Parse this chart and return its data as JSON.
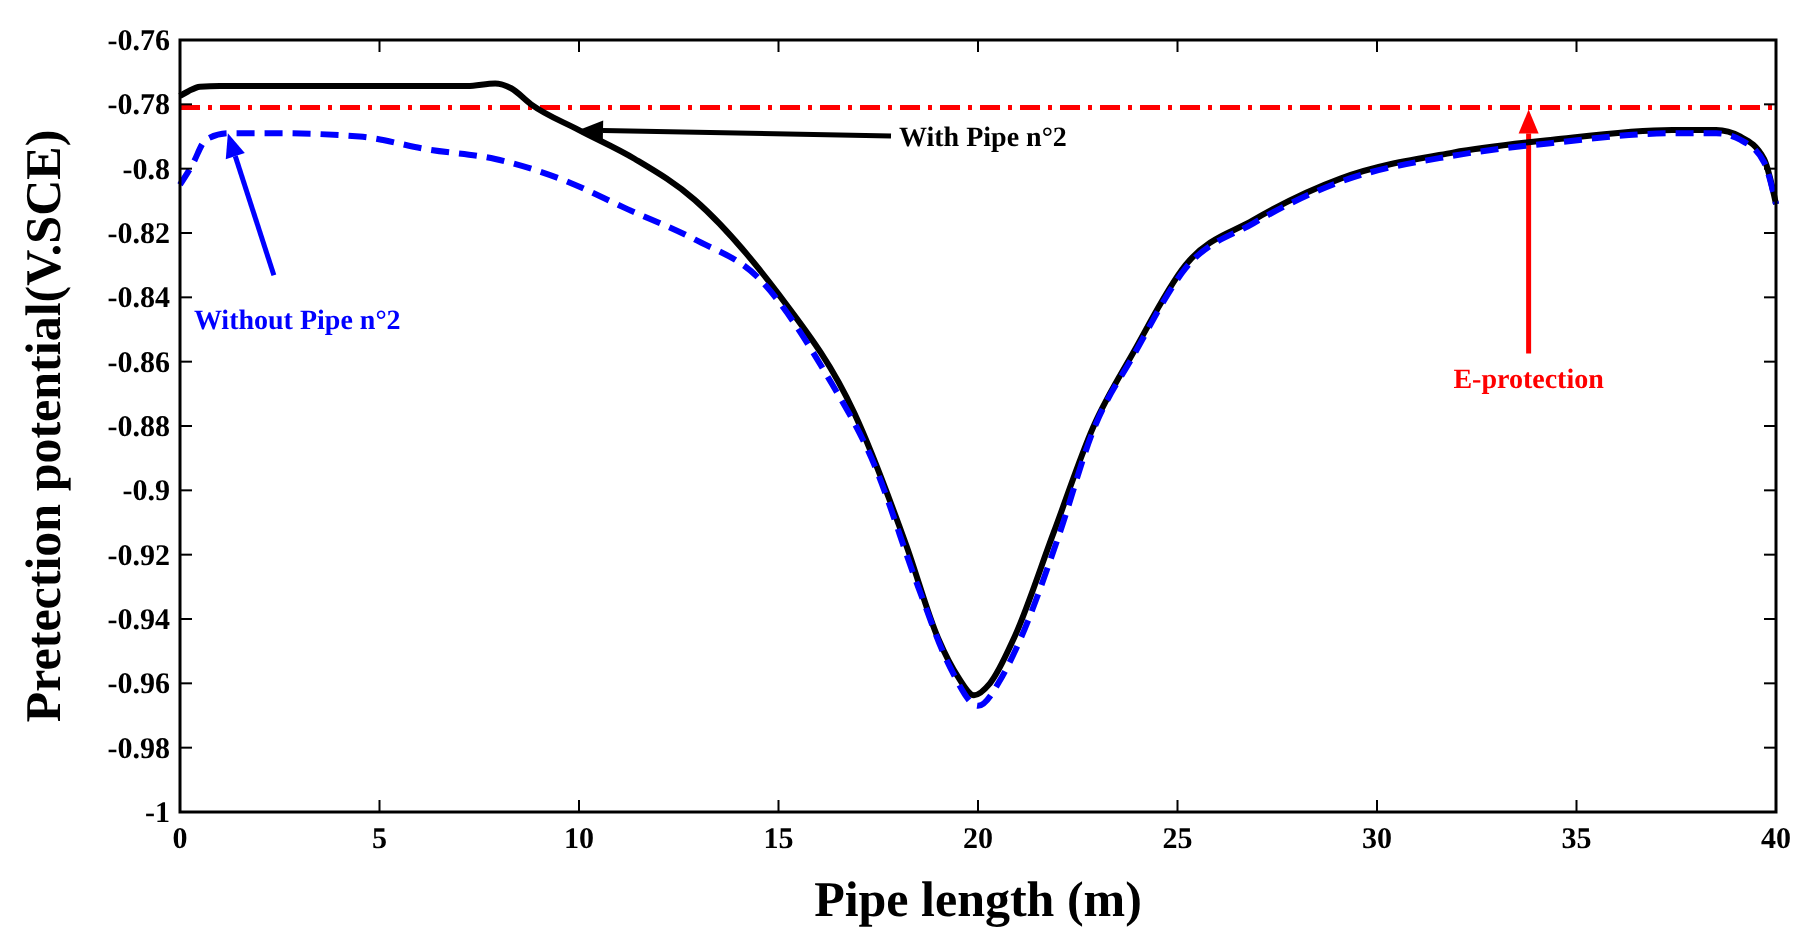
{
  "chart_data": {
    "type": "line",
    "xlabel": "Pipe length (m)",
    "ylabel": "Pretection potential(V.SCE)",
    "xlim": [
      0,
      40
    ],
    "xticks": [
      0,
      5,
      10,
      15,
      20,
      25,
      30,
      35,
      40
    ],
    "ylim": [
      -1,
      -0.76
    ],
    "yticks": [
      -1,
      -0.98,
      -0.96,
      -0.94,
      -0.92,
      -0.9,
      -0.88,
      -0.86,
      -0.84,
      -0.82,
      -0.8,
      -0.78,
      -0.76
    ],
    "grid": false,
    "marker": "none",
    "series": [
      {
        "name": "With Pipe n°2",
        "color": "#000000",
        "line_style": "solid",
        "x": [
          0,
          0.2,
          0.5,
          1,
          3,
          5,
          7.2,
          7.9,
          8.3,
          8.8,
          10,
          11.4,
          12.9,
          14.5,
          15.0,
          16.9,
          18.2,
          19.0,
          19.5,
          19.9,
          20.3,
          20.9,
          21.9,
          22.9,
          23.9,
          25.2,
          26.9,
          29.1,
          31.9,
          34.4,
          37.4,
          38.5,
          39.1,
          39.7,
          40
        ],
        "values": [
          -0.7774,
          -0.776,
          -0.7745,
          -0.7743,
          -0.7743,
          -0.7743,
          -0.7743,
          -0.7735,
          -0.775,
          -0.78,
          -0.788,
          -0.797,
          -0.8097,
          -0.831,
          -0.839,
          -0.876,
          -0.917,
          -0.946,
          -0.958,
          -0.9637,
          -0.96,
          -0.946,
          -0.913,
          -0.88,
          -0.857,
          -0.83,
          -0.816,
          -0.803,
          -0.795,
          -0.791,
          -0.788,
          -0.788,
          -0.79,
          -0.797,
          -0.811
        ]
      },
      {
        "name": "Without Pipe n°2",
        "color": "#0000ff",
        "line_style": "dashed",
        "x": [
          0,
          0.3,
          0.65,
          1.2,
          2.5,
          4.5,
          6.2,
          7.9,
          9.5,
          11.2,
          12.9,
          14.5,
          16.2,
          17.4,
          18.5,
          19.3,
          20.0,
          20.6,
          21.0,
          22.0,
          22.9,
          23.9,
          25.2,
          26.9,
          29.1,
          31.9,
          34.4,
          37.4,
          38.5,
          39.1,
          39.7,
          40
        ],
        "values": [
          -0.805,
          -0.799,
          -0.791,
          -0.789,
          -0.789,
          -0.79,
          -0.794,
          -0.797,
          -0.803,
          -0.8125,
          -0.822,
          -0.834,
          -0.864,
          -0.892,
          -0.93,
          -0.955,
          -0.967,
          -0.958,
          -0.948,
          -0.915,
          -0.881,
          -0.858,
          -0.831,
          -0.817,
          -0.804,
          -0.796,
          -0.792,
          -0.789,
          -0.789,
          -0.791,
          -0.798,
          -0.811
        ]
      }
    ],
    "ref_lines": [
      {
        "axis": "y",
        "value": -0.781,
        "label": "E-protection",
        "color": "#ff0000",
        "line_style": "dashdot"
      }
    ]
  }
}
